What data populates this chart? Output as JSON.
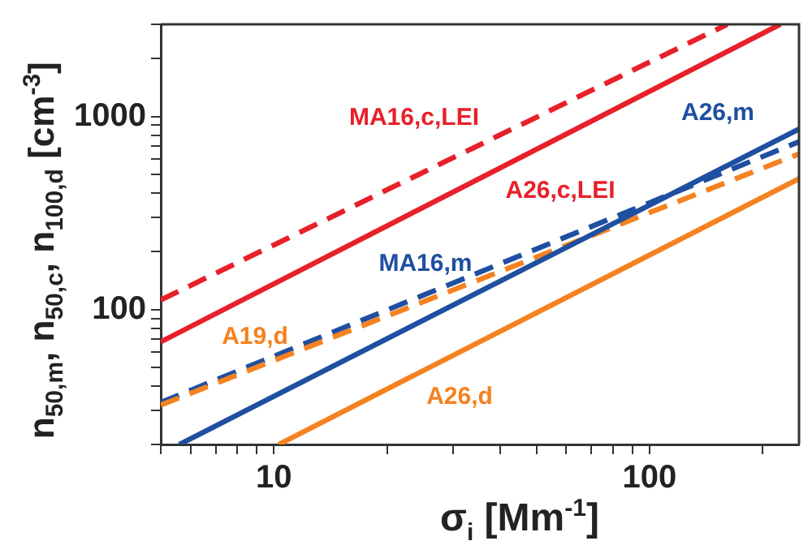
{
  "chart_data": {
    "type": "line",
    "xlabel": "σ$_{i}$ [Mm$^{-1}$]",
    "ylabel": "n$_{50,m}$, n$_{50,c}$, n$_{100,d}$ [cm$^{-3}$]",
    "log": "xy",
    "grid": false,
    "legend": false,
    "marker": "none",
    "xlim": [
      5,
      250
    ],
    "ylim": [
      20,
      3000
    ],
    "xticks": [
      {
        "value": 5,
        "label": null
      },
      {
        "value": 6,
        "label": null
      },
      {
        "value": 7,
        "label": null
      },
      {
        "value": 8,
        "label": null
      },
      {
        "value": 9,
        "label": null
      },
      10,
      {
        "value": 20,
        "label": null
      },
      {
        "value": 30,
        "label": null
      },
      {
        "value": 40,
        "label": null
      },
      {
        "value": 50,
        "label": null
      },
      {
        "value": 60,
        "label": null
      },
      {
        "value": 70,
        "label": null
      },
      {
        "value": 80,
        "label": null
      },
      {
        "value": 90,
        "label": null
      },
      100,
      {
        "value": 200,
        "label": null
      }
    ],
    "yticks": [
      {
        "value": 20,
        "label": null
      },
      {
        "value": 30,
        "label": null
      },
      {
        "value": 40,
        "label": null
      },
      {
        "value": 50,
        "label": null
      },
      {
        "value": 60,
        "label": null
      },
      {
        "value": 70,
        "label": null
      },
      {
        "value": 80,
        "label": null
      },
      {
        "value": 90,
        "label": null
      },
      100,
      {
        "value": 200,
        "label": null
      },
      {
        "value": 300,
        "label": null
      },
      {
        "value": 400,
        "label": null
      },
      {
        "value": 500,
        "label": null
      },
      {
        "value": 600,
        "label": null
      },
      {
        "value": 700,
        "label": null
      },
      {
        "value": 800,
        "label": null
      },
      {
        "value": 900,
        "label": null
      },
      1000,
      {
        "value": 2000,
        "label": null
      },
      {
        "value": 3000,
        "label": null
      }
    ],
    "series": [
      {
        "name": "MA16,c,LEI",
        "color": "#e8202a",
        "line_style": "dashed",
        "x": [
          5,
          161
        ],
        "values": [
          112,
          3000
        ]
      },
      {
        "name": "A26,c,LEI",
        "color": "#e8202a",
        "line_style": "solid",
        "x": [
          5,
          223
        ],
        "values": [
          68,
          3000
        ]
      },
      {
        "name": "A26,m",
        "color": "#1f4fa0",
        "line_style": "solid",
        "x": [
          5.6,
          250
        ],
        "values": [
          20,
          860
        ]
      },
      {
        "name": "A19,d",
        "color": "#f58220",
        "line_style": "dashed",
        "x": [
          5,
          250
        ],
        "values": [
          32,
          640
        ]
      },
      {
        "name": "MA16,m",
        "color": "#1f4fa0",
        "line_style": "dashed",
        "x": [
          5,
          250
        ],
        "values": [
          33,
          740
        ]
      },
      {
        "name": "A26,d",
        "color": "#f58220",
        "line_style": "solid",
        "x": [
          10.3,
          250
        ],
        "values": [
          20,
          476
        ]
      }
    ]
  }
}
